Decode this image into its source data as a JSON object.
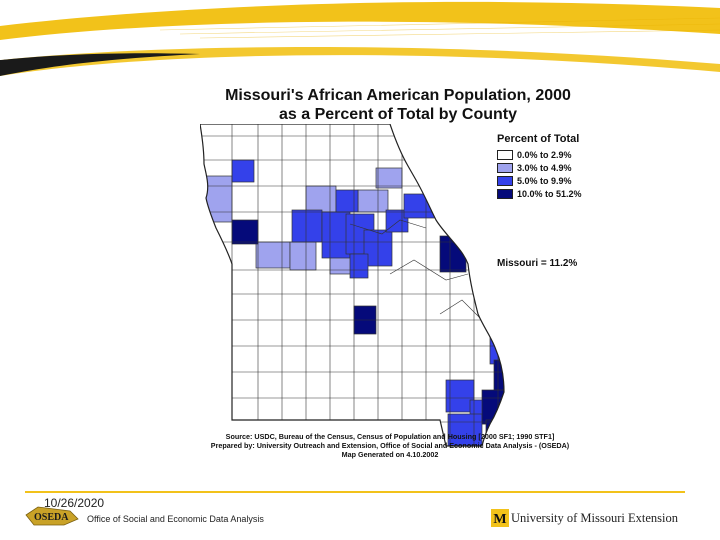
{
  "slide": {
    "title_line1": "Missouri's African American Population, 2000",
    "title_line2": "as a Percent of Total by County"
  },
  "legend": {
    "title": "Percent of Total",
    "items": [
      {
        "label": "0.0% to 2.9%",
        "color": "#ffffff"
      },
      {
        "label": "3.0% to 4.9%",
        "color": "#9fa3ee"
      },
      {
        "label": "5.0% to 9.9%",
        "color": "#3441ea"
      },
      {
        "label": "10.0% to 51.2%",
        "color": "#050a7a"
      }
    ]
  },
  "state_total": "Missouri = 11.2%",
  "source": {
    "line1": "Source: USDC, Bureau of the Census, Census of Population and Housing [2000 SF1; 1990 STF1]",
    "line2": "Prepared by: University Outreach and Extension, Office of Social and Economic Data Analysis - (OSEDA)",
    "line3": "Map Generated on 4.10.2002"
  },
  "footer": {
    "date": "10/26/2020",
    "office": "Office of Social and Economic Data Analysis",
    "oseda_logo_text": "OSEDA",
    "university": "University of Missouri Extension",
    "um_logo_text": "M"
  },
  "colors": {
    "accent_yellow": "#f2c21a",
    "dark_band": "#1a1a1a"
  }
}
